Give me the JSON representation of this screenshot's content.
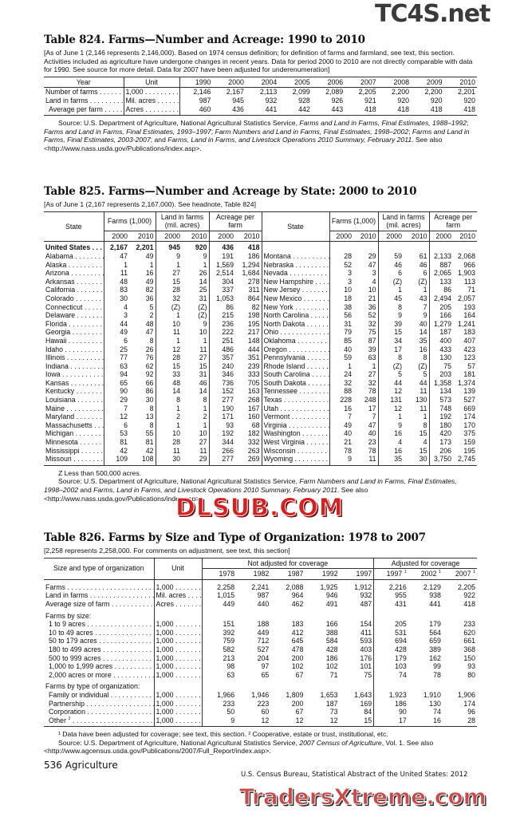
{
  "watermarks": {
    "top": "TC4S.net",
    "middle": "DLSUB.COM",
    "bottom": "TradersXtreme.com"
  },
  "t824": {
    "title": "Table 824. Farms—Number and Acreage: 1990 to 2010",
    "headnote": "[As of June 1 (2,146 represents 2,146,000). Based on 1974 census definition; for definition of farms and farmland, see text, this section. Activities included as agriculture have undergone changes in recent years. Data for period 2000 to 2010 are not directly comparable with data for 1990. See source for more detail. Data for 2007 have been adjusted for underenumeration]",
    "col_year": "Year",
    "col_unit": "Unit",
    "years": [
      "1990",
      "2000",
      "2004",
      "2005",
      "2006",
      "2007",
      "2008",
      "2009",
      "2010"
    ],
    "rows": [
      {
        "label": "Number of farms",
        "unit": "1,000",
        "values": [
          "2,146",
          "2,167",
          "2,113",
          "2,099",
          "2,089",
          "2,205",
          "2,200",
          "2,200",
          "2,201"
        ]
      },
      {
        "label": "Land in farms",
        "unit": "Mil. acres",
        "values": [
          "987",
          "945",
          "932",
          "928",
          "926",
          "921",
          "920",
          "920",
          "920"
        ]
      },
      {
        "label": "Average per farm",
        "unit": "Acres",
        "values": [
          "460",
          "436",
          "441",
          "442",
          "443",
          "418",
          "418",
          "418",
          "418"
        ]
      }
    ],
    "source": [
      {
        "t": "Source: U.S. Department of Agriculture, National Agricultural Statistics Service, ",
        "i": false
      },
      {
        "t": "Farms and Land in Farms, Final Estimates, 1988–1992",
        "i": true
      },
      {
        "t": "; ",
        "i": false
      },
      {
        "t": "Farms and Land in Farms, Final Estimates, 1993–1997",
        "i": true
      },
      {
        "t": "; ",
        "i": false
      },
      {
        "t": "Farm Numbers and Land in Farms, Final Estimates, 1998–2002",
        "i": true
      },
      {
        "t": "; ",
        "i": false
      },
      {
        "t": "Farms and Land in Farms, Final Estimates, 2003-2007",
        "i": true
      },
      {
        "t": "; and ",
        "i": false
      },
      {
        "t": "Farms, Land in Farms, and Livestock Operations 2010 Summary, February 2011",
        "i": true
      },
      {
        "t": ". See also <http://www.nass.usda.gov/Publications/index.asp>.",
        "i": false
      }
    ]
  },
  "t825": {
    "title": "Table 825. Farms—Number and Acreage by State: 2000 to 2010",
    "headnote": "[As of June 1 (2,167 represents 2,167,000). See headnote, Table 824]",
    "col_state": "State",
    "groups": [
      "Farms (1,000)",
      "Land in farms (mil. acres)",
      "Acreage per farm"
    ],
    "years": [
      "2000",
      "2010"
    ],
    "left": [
      [
        "United States",
        "2,167",
        "2,201",
        "945",
        "920",
        "436",
        "418"
      ],
      [
        "Alabama",
        "47",
        "49",
        "9",
        "9",
        "191",
        "186"
      ],
      [
        "Alaska",
        "1",
        "1",
        "1",
        "1",
        "1,569",
        "1,294"
      ],
      [
        "Arizona",
        "11",
        "16",
        "27",
        "26",
        "2,514",
        "1,684"
      ],
      [
        "Arkansas",
        "48",
        "49",
        "15",
        "14",
        "304",
        "278"
      ],
      [
        "California",
        "83",
        "82",
        "28",
        "25",
        "337",
        "311"
      ],
      [
        "Colorado",
        "30",
        "36",
        "32",
        "31",
        "1,053",
        "864"
      ],
      [
        "Connecticut",
        "4",
        "5",
        "(Z)",
        "(Z)",
        "86",
        "82"
      ],
      [
        "Delaware",
        "3",
        "2",
        "1",
        "(Z)",
        "215",
        "198"
      ],
      [
        "Florida",
        "44",
        "48",
        "10",
        "9",
        "236",
        "195"
      ],
      [
        "Georgia",
        "49",
        "47",
        "11",
        "10",
        "222",
        "217"
      ],
      [
        "Hawaii",
        "6",
        "8",
        "1",
        "1",
        "251",
        "148"
      ],
      [
        "Idaho",
        "25",
        "26",
        "12",
        "11",
        "486",
        "444"
      ],
      [
        "Illinois",
        "77",
        "76",
        "28",
        "27",
        "357",
        "351"
      ],
      [
        "Indiana",
        "63",
        "62",
        "15",
        "15",
        "240",
        "239"
      ],
      [
        "Iowa",
        "94",
        "92",
        "33",
        "31",
        "346",
        "333"
      ],
      [
        "Kansas",
        "65",
        "66",
        "48",
        "46",
        "736",
        "705"
      ],
      [
        "Kentucky",
        "90",
        "86",
        "14",
        "14",
        "152",
        "163"
      ],
      [
        "Louisiana",
        "29",
        "30",
        "8",
        "8",
        "277",
        "268"
      ],
      [
        "Maine",
        "7",
        "8",
        "1",
        "1",
        "190",
        "167"
      ],
      [
        "Maryland",
        "12",
        "13",
        "2",
        "2",
        "171",
        "160"
      ],
      [
        "Massachusetts",
        "6",
        "8",
        "1",
        "1",
        "93",
        "68"
      ],
      [
        "Michigan",
        "53",
        "55",
        "10",
        "10",
        "192",
        "182"
      ],
      [
        "Minnesota",
        "81",
        "81",
        "28",
        "27",
        "344",
        "332"
      ],
      [
        "Mississippi",
        "42",
        "42",
        "11",
        "11",
        "266",
        "263"
      ],
      [
        "Missouri",
        "109",
        "108",
        "30",
        "29",
        "277",
        "269"
      ]
    ],
    "right": [
      [
        "Montana",
        "28",
        "29",
        "59",
        "61",
        "2,133",
        "2,068"
      ],
      [
        "Nebraska",
        "52",
        "47",
        "46",
        "46",
        "887",
        "966"
      ],
      [
        "Nevada",
        "3",
        "3",
        "6",
        "6",
        "2,065",
        "1,903"
      ],
      [
        "New Hampshire",
        "3",
        "4",
        "(Z)",
        "(Z)",
        "133",
        "113"
      ],
      [
        "New Jersey",
        "10",
        "10",
        "1",
        "1",
        "86",
        "71"
      ],
      [
        "New Mexico",
        "18",
        "21",
        "45",
        "43",
        "2,494",
        "2,057"
      ],
      [
        "New York",
        "38",
        "36",
        "8",
        "7",
        "205",
        "193"
      ],
      [
        "North Carolina",
        "56",
        "52",
        "9",
        "9",
        "166",
        "164"
      ],
      [
        "North Dakota",
        "31",
        "32",
        "39",
        "40",
        "1,279",
        "1,241"
      ],
      [
        "Ohio",
        "79",
        "75",
        "15",
        "14",
        "187",
        "183"
      ],
      [
        "Oklahoma",
        "85",
        "87",
        "34",
        "35",
        "400",
        "407"
      ],
      [
        "Oregon",
        "40",
        "39",
        "17",
        "16",
        "433",
        "423"
      ],
      [
        "Pennsylvania",
        "59",
        "63",
        "8",
        "8",
        "130",
        "123"
      ],
      [
        "Rhode Island",
        "1",
        "1",
        "(Z)",
        "(Z)",
        "75",
        "57"
      ],
      [
        "South Carolina",
        "24",
        "27",
        "5",
        "5",
        "203",
        "181"
      ],
      [
        "South Dakota",
        "32",
        "32",
        "44",
        "44",
        "1,358",
        "1,374"
      ],
      [
        "Tennessee",
        "88",
        "78",
        "12",
        "11",
        "134",
        "139"
      ],
      [
        "Texas",
        "228",
        "248",
        "131",
        "130",
        "573",
        "527"
      ],
      [
        "Utah",
        "16",
        "17",
        "12",
        "11",
        "748",
        "669"
      ],
      [
        "Vermont",
        "7",
        "7",
        "1",
        "1",
        "192",
        "174"
      ],
      [
        "Virginia",
        "49",
        "47",
        "9",
        "8",
        "180",
        "170"
      ],
      [
        "Washington",
        "40",
        "40",
        "16",
        "15",
        "420",
        "375"
      ],
      [
        "West Virginia",
        "21",
        "23",
        "4",
        "4",
        "173",
        "159"
      ],
      [
        "Wisconsin",
        "78",
        "78",
        "16",
        "15",
        "206",
        "195"
      ],
      [
        "Wyoming",
        "9",
        "11",
        "35",
        "30",
        "3,750",
        "2,745"
      ]
    ],
    "note": "Z Less than 500,000 acres.",
    "source": [
      {
        "t": "Source: U.S. Department of Agriculture, National Agricultural Statistics Service, ",
        "i": false
      },
      {
        "t": "Farm Numbers and Land in Farms, Final Estimates, 1998–2002",
        "i": true
      },
      {
        "t": " and ",
        "i": false
      },
      {
        "t": "Farms, Land in Farms, and Livestock Operations 2010 Summary, February 2011",
        "i": true
      },
      {
        "t": ". See also <http://www.nass.usda.gov/Publications/index.asp>.",
        "i": false
      }
    ]
  },
  "t826": {
    "title": "Table 826. Farms by Size and Type of Organization: 1978 to 2007",
    "headnote": "[2,258 represents 2,258,000. For comments on adjustment, see text, this section]",
    "col_label": "Size and type of organization",
    "col_unit": "Unit",
    "group_not_adjusted": "Not adjusted for coverage",
    "group_adjusted": "Adjusted for coverage",
    "years": [
      {
        "y": "1978",
        "s": ""
      },
      {
        "y": "1982",
        "s": ""
      },
      {
        "y": "1987",
        "s": ""
      },
      {
        "y": "1992",
        "s": ""
      },
      {
        "y": "1997",
        "s": ""
      },
      {
        "y": "1997",
        "s": "1"
      },
      {
        "y": "2002",
        "s": "1"
      },
      {
        "y": "2007",
        "s": "1"
      }
    ],
    "sections": [
      {
        "heading": "",
        "rows": [
          {
            "label": "Farms",
            "unit": "1,000",
            "values": [
              "2,258",
              "2,241",
              "2,088",
              "1,925",
              "1,912",
              "2,216",
              "2,129",
              "2,205"
            ]
          },
          {
            "label": "Land in farms",
            "unit": "Mil. acres",
            "values": [
              "1,015",
              "987",
              "964",
              "946",
              "932",
              "955",
              "938",
              "922"
            ]
          },
          {
            "label": "Average size of farm",
            "unit": "Acres",
            "values": [
              "449",
              "440",
              "462",
              "491",
              "487",
              "431",
              "441",
              "418"
            ]
          }
        ]
      },
      {
        "heading": "Farms by size:",
        "rows": [
          {
            "label": "1 to 9 acres",
            "unit": "1,000",
            "values": [
              "151",
              "188",
              "183",
              "166",
              "154",
              "205",
              "179",
              "233"
            ]
          },
          {
            "label": "10 to 49 acres",
            "unit": "1,000",
            "values": [
              "392",
              "449",
              "412",
              "388",
              "411",
              "531",
              "564",
              "620"
            ]
          },
          {
            "label": "50 to 179 acres",
            "unit": "1,000",
            "values": [
              "759",
              "712",
              "645",
              "584",
              "593",
              "694",
              "659",
              "661"
            ]
          },
          {
            "label": "180 to 499 acres",
            "unit": "1,000",
            "values": [
              "582",
              "527",
              "478",
              "428",
              "403",
              "428",
              "389",
              "368"
            ]
          },
          {
            "label": "500 to 999 acres",
            "unit": "1,000",
            "values": [
              "213",
              "204",
              "200",
              "186",
              "176",
              "179",
              "162",
              "150"
            ]
          },
          {
            "label": "1,000 to 1,999 acres",
            "unit": "1,000",
            "values": [
              "98",
              "97",
              "102",
              "102",
              "101",
              "103",
              "99",
              "93"
            ]
          },
          {
            "label": "2,000 acres or more",
            "unit": "1,000",
            "values": [
              "63",
              "65",
              "67",
              "71",
              "75",
              "74",
              "78",
              "80"
            ]
          }
        ]
      },
      {
        "heading": "Farms by type of organization:",
        "rows": [
          {
            "label": "Family or individual",
            "unit": "1,000",
            "values": [
              "1,966",
              "1,946",
              "1,809",
              "1,653",
              "1,643",
              "1,923",
              "1,910",
              "1,906"
            ]
          },
          {
            "label": "Partnership",
            "unit": "1,000",
            "values": [
              "233",
              "223",
              "200",
              "187",
              "169",
              "186",
              "130",
              "174"
            ]
          },
          {
            "label": "Corporation",
            "unit": "1,000",
            "values": [
              "50",
              "60",
              "67",
              "73",
              "84",
              "90",
              "74",
              "96"
            ]
          },
          {
            "label": "Other",
            "sup": "2",
            "unit": "1,000",
            "values": [
              "9",
              "12",
              "12",
              "12",
              "15",
              "17",
              "16",
              "28"
            ]
          }
        ]
      }
    ],
    "footnote": "¹ Data have been adjusted for coverage; see text, this section. ² Cooperative, estate or trust, institutional, etc.",
    "source": [
      {
        "t": "Source: U.S. Department of Agriculture, National Agricultural Statistics Service, ",
        "i": false
      },
      {
        "t": "2007 Census of Agriculture",
        "i": true
      },
      {
        "t": ", Vol. 1. See also <http://www.agcensus.usda.gov/Publications/2007/Full_Report/index.asp>.",
        "i": false
      }
    ]
  },
  "footer": {
    "page": "536  Agriculture",
    "credit": "U.S. Census Bureau, Statistical Abstract of the United States: 2012"
  }
}
